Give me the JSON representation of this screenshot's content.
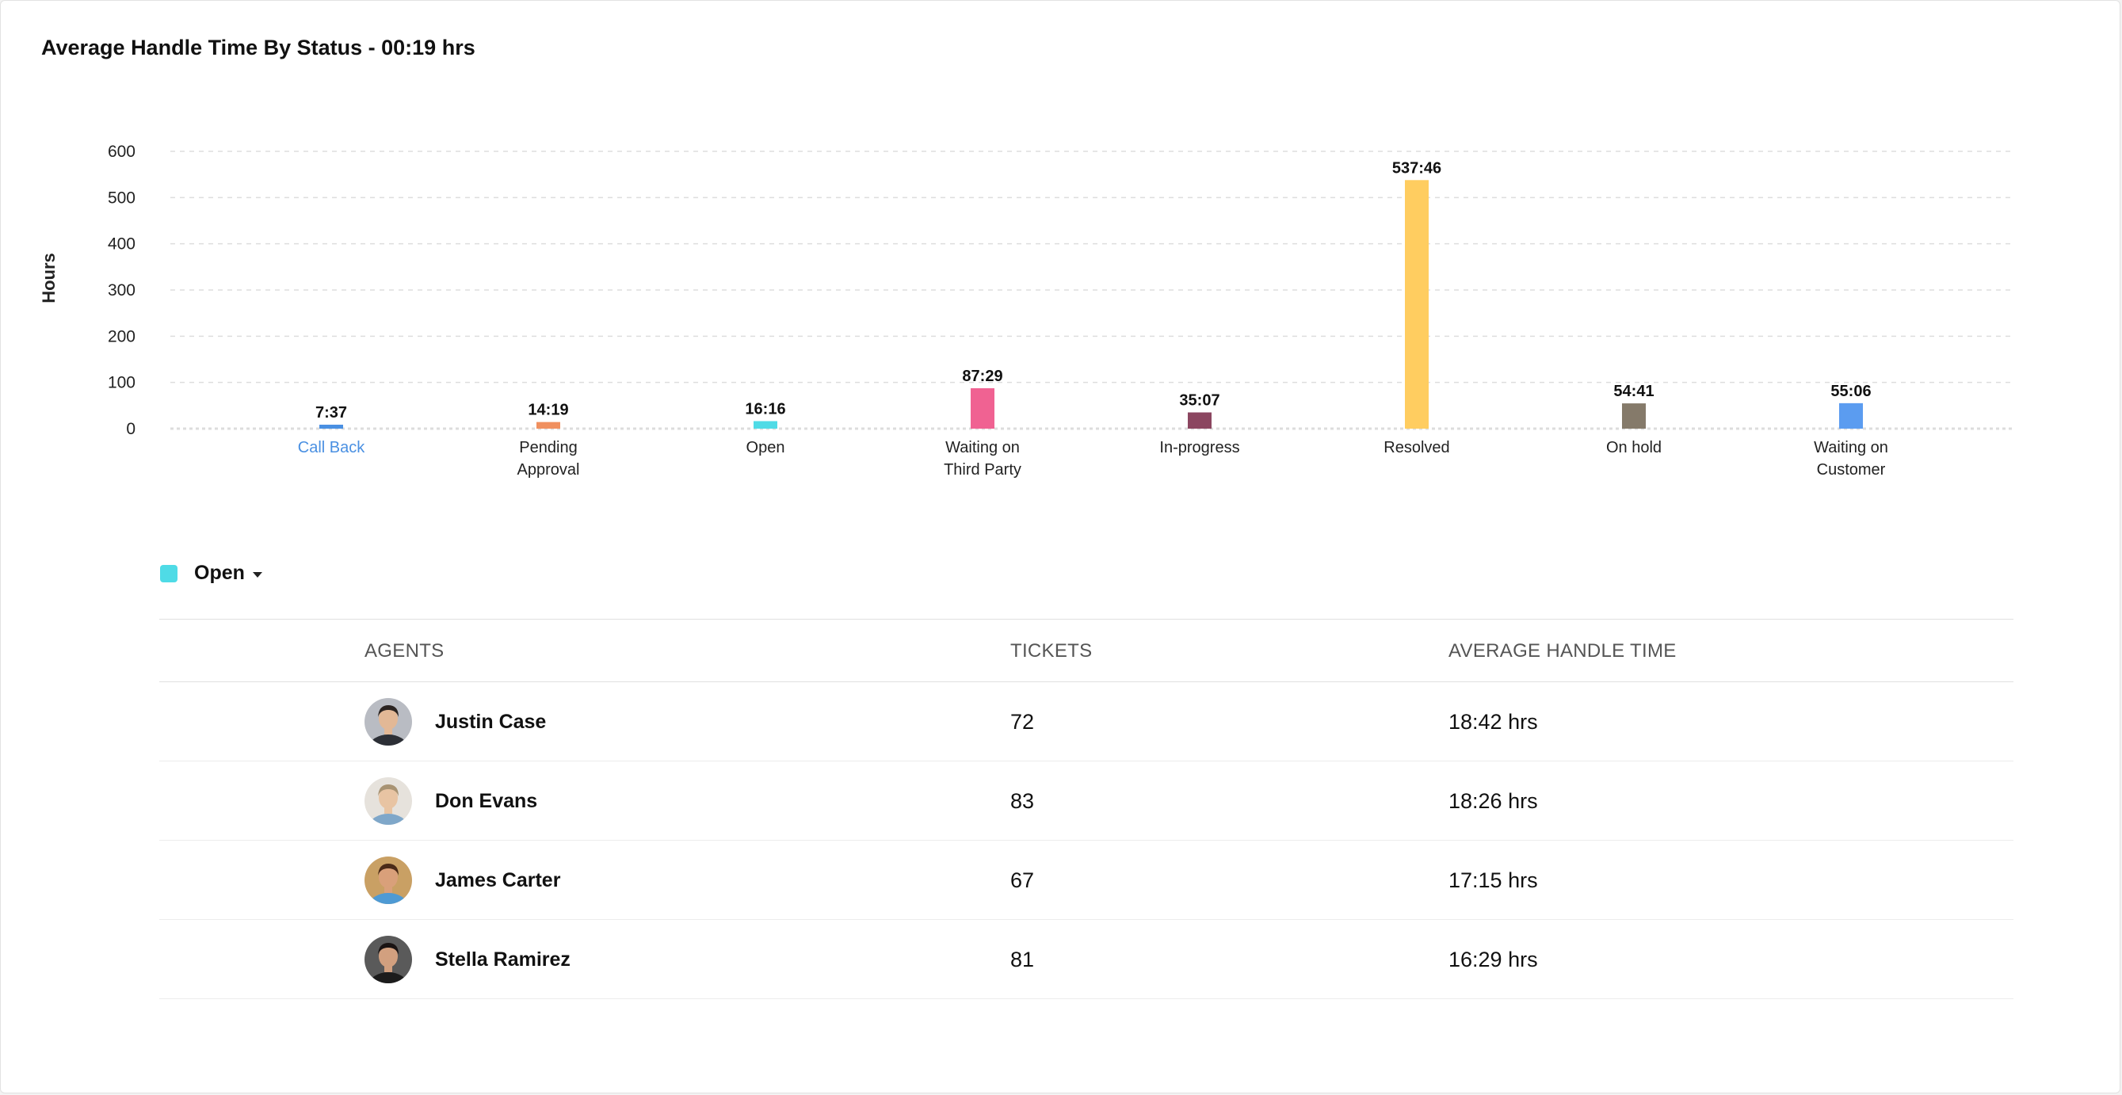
{
  "title": "Average Handle Time By Status - 00:19 hrs",
  "colors": {
    "grid": "#dddddd",
    "axis_text": "#222222",
    "link": "#4a90e2"
  },
  "chart_data": {
    "type": "bar",
    "ylabel": "Hours",
    "ylim": [
      0,
      600
    ],
    "yticks": [
      0,
      100,
      200,
      300,
      400,
      500,
      600
    ],
    "grid": true,
    "categories": [
      [
        "Call Back"
      ],
      [
        "Pending",
        "Approval"
      ],
      [
        "Open"
      ],
      [
        "Waiting on",
        "Third Party"
      ],
      [
        "In-progress"
      ],
      [
        "Resolved"
      ],
      [
        "On hold"
      ],
      [
        "Waiting on",
        "Customer"
      ]
    ],
    "values": [
      7.62,
      14.32,
      16.27,
      87.48,
      35.12,
      537.77,
      54.68,
      55.1
    ],
    "value_labels": [
      "7:37",
      "14:19",
      "16:16",
      "87:29",
      "35:07",
      "537:46",
      "54:41",
      "55:06"
    ],
    "colors": [
      "#4a90e2",
      "#f0905f",
      "#4fdbe6",
      "#f06292",
      "#8b4660",
      "#ffcd60",
      "#857a6a",
      "#5b9cf0"
    ],
    "highlighted_category": 0
  },
  "legend": {
    "label": "Open",
    "color": "#4fdbe6"
  },
  "table": {
    "headers": {
      "agents": "AGENTS",
      "tickets": "TICKETS",
      "aht": "AVERAGE HANDLE TIME"
    },
    "rows": [
      {
        "name": "Justin Case",
        "tickets": "72",
        "aht": "18:42 hrs",
        "avatar": {
          "bg": "#b9bcc3",
          "skin": "#e2b896",
          "hair": "#2b2421",
          "shirt": "#2c2f36"
        }
      },
      {
        "name": "Don Evans",
        "tickets": "83",
        "aht": "18:26 hrs",
        "avatar": {
          "bg": "#e6e2dc",
          "skin": "#e8c4a3",
          "hair": "#a89373",
          "shirt": "#7fa7c9"
        }
      },
      {
        "name": "James Carter",
        "tickets": "67",
        "aht": "17:15 hrs",
        "avatar": {
          "bg": "#c9a064",
          "skin": "#d9a07a",
          "hair": "#4a2a18",
          "shirt": "#4e9ad4"
        }
      },
      {
        "name": "Stella Ramirez",
        "tickets": "81",
        "aht": "16:29 hrs",
        "avatar": {
          "bg": "#5a5a5a",
          "skin": "#d2a07f",
          "hair": "#1a1413",
          "shirt": "#1c1c1c"
        }
      }
    ]
  }
}
